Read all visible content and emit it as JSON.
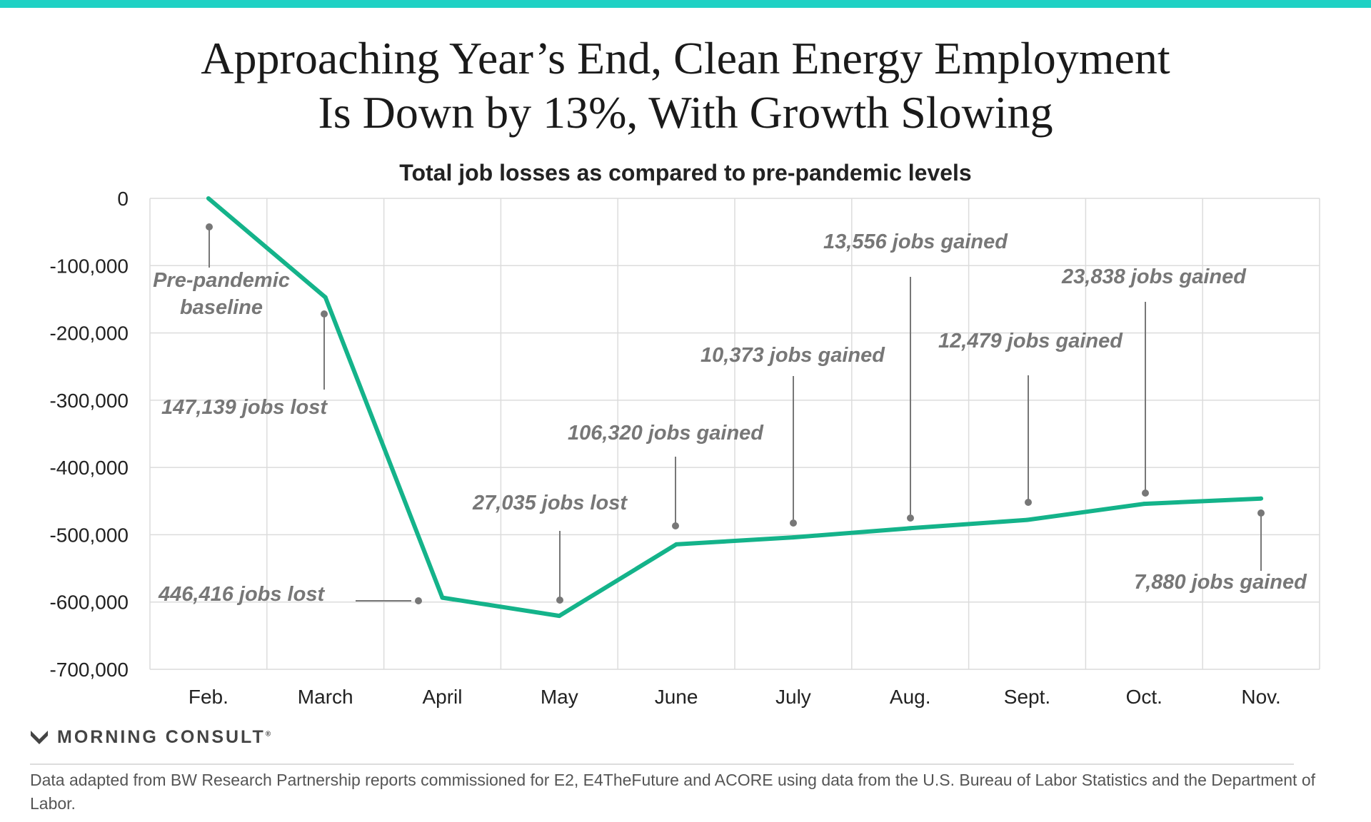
{
  "header": {
    "title_line1": "Approaching Year’s End, Clean Energy Employment",
    "title_line2": "Is Down by 13%, With Growth Slowing",
    "subtitle": "Total job losses as compared to pre-pandemic levels"
  },
  "brand": {
    "name": "MORNING CONSULT",
    "registered": "®"
  },
  "footnote": "Data adapted from BW Research Partnership reports commissioned for E2, E4TheFuture and ACORE using data from the U.S. Bureau of Labor Statistics and the Department of Labor.",
  "colors": {
    "accent_bar": "#1fd1c4",
    "line": "#14b38a",
    "annotation": "#777777",
    "grid": "#dcdcdc",
    "axis_text": "#222222"
  },
  "chart_data": {
    "type": "line",
    "title": "Approaching Year’s End, Clean Energy Employment Is Down by 13%, With Growth Slowing",
    "subtitle": "Total job losses as compared to pre-pandemic levels",
    "xlabel": "",
    "ylabel": "",
    "categories": [
      "Feb.",
      "March",
      "April",
      "May",
      "June",
      "July",
      "Aug.",
      "Sept.",
      "Oct.",
      "Nov."
    ],
    "series": [
      {
        "values": [
          0,
          -147139,
          -593555,
          -620590,
          -514270,
          -503897,
          -490341,
          -477862,
          -454024,
          -446144
        ]
      }
    ],
    "ylim": [
      -700000,
      0
    ],
    "yticks": [
      0,
      -100000,
      -200000,
      -300000,
      -400000,
      -500000,
      -600000,
      -700000
    ],
    "ytick_labels": [
      "0",
      "-100,000",
      "-200,000",
      "-300,000",
      "-400,000",
      "-500,000",
      "-600,000",
      "-700,000"
    ],
    "grid": true,
    "legend": "none",
    "annotations": [
      {
        "lines": [
          "Pre-pandemic",
          "baseline"
        ],
        "index": 0,
        "value": 0
      },
      {
        "lines": [
          "147,139 jobs lost"
        ],
        "index": 1,
        "value": -147139
      },
      {
        "lines": [
          "446,416 jobs lost"
        ],
        "index": 2,
        "value": -593555
      },
      {
        "lines": [
          "27,035 jobs lost"
        ],
        "index": 3,
        "value": -620590
      },
      {
        "lines": [
          "106,320 jobs gained"
        ],
        "index": 4,
        "value": -514270
      },
      {
        "lines": [
          "10,373 jobs gained"
        ],
        "index": 5,
        "value": -503897
      },
      {
        "lines": [
          "13,556 jobs gained"
        ],
        "index": 6,
        "value": -490341
      },
      {
        "lines": [
          "12,479 jobs gained"
        ],
        "index": 7,
        "value": -477862
      },
      {
        "lines": [
          "23,838 jobs gained"
        ],
        "index": 8,
        "value": -454024
      },
      {
        "lines": [
          "7,880 jobs gained"
        ],
        "index": 9,
        "value": -446144
      }
    ]
  }
}
